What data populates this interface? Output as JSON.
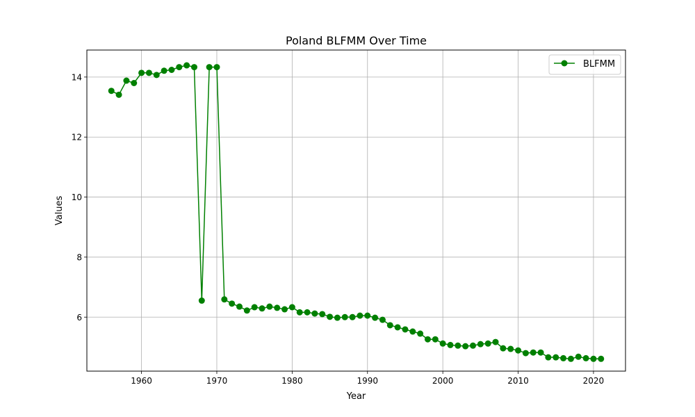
{
  "chart_data": {
    "type": "line",
    "title": "Poland BLFMM Over Time",
    "xlabel": "Year",
    "ylabel": "Values",
    "xlim": [
      1952.75,
      2024.25
    ],
    "ylim": [
      4.2,
      14.9
    ],
    "xticks": [
      1960,
      1970,
      1980,
      1990,
      2000,
      2010,
      2020
    ],
    "yticks": [
      6,
      8,
      10,
      12,
      14
    ],
    "grid": true,
    "legend_position": "top-right",
    "series": [
      {
        "name": "BLFMM",
        "color": "#008000",
        "marker": "circle",
        "x": [
          1956,
          1957,
          1958,
          1959,
          1960,
          1961,
          1962,
          1963,
          1964,
          1965,
          1966,
          1967,
          1968,
          1969,
          1970,
          1971,
          1972,
          1973,
          1974,
          1975,
          1976,
          1977,
          1978,
          1979,
          1980,
          1981,
          1982,
          1983,
          1984,
          1985,
          1986,
          1987,
          1988,
          1989,
          1990,
          1991,
          1992,
          1993,
          1994,
          1995,
          1996,
          1997,
          1998,
          1999,
          2000,
          2001,
          2002,
          2003,
          2004,
          2005,
          2006,
          2007,
          2008,
          2009,
          2010,
          2011,
          2012,
          2013,
          2014,
          2015,
          2016,
          2017,
          2018,
          2019,
          2020,
          2021
        ],
        "y": [
          13.54,
          13.41,
          13.88,
          13.8,
          14.14,
          14.14,
          14.07,
          14.21,
          14.24,
          14.33,
          14.39,
          14.33,
          6.55,
          14.33,
          14.33,
          6.59,
          6.45,
          6.35,
          6.22,
          6.33,
          6.29,
          6.35,
          6.31,
          6.26,
          6.33,
          6.16,
          6.16,
          6.12,
          6.1,
          6.01,
          5.98,
          6.0,
          6.0,
          6.05,
          6.05,
          5.98,
          5.91,
          5.73,
          5.66,
          5.59,
          5.52,
          5.45,
          5.26,
          5.26,
          5.12,
          5.07,
          5.05,
          5.03,
          5.05,
          5.1,
          5.12,
          5.17,
          4.96,
          4.94,
          4.89,
          4.8,
          4.82,
          4.82,
          4.66,
          4.66,
          4.63,
          4.61,
          4.68,
          4.63,
          4.61,
          4.61
        ]
      }
    ]
  }
}
